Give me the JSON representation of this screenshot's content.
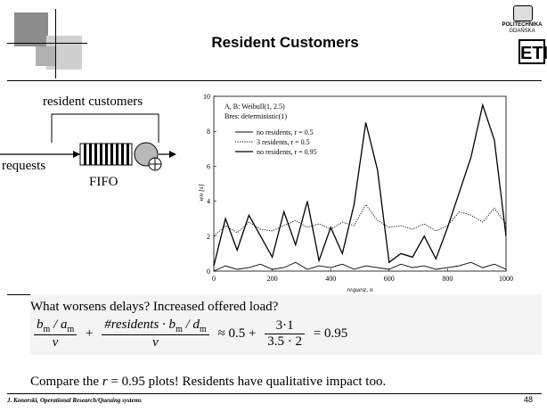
{
  "slide": {
    "title": "Resident Customers",
    "logo": {
      "line1": "POLITECHNIKA",
      "line2": "GDAŃSKA",
      "mark": "ETI"
    },
    "diagram": {
      "resident_label": "resident customers",
      "requests_label": "requests",
      "fifo_label": "FIFO"
    },
    "question": "What worsens delays? Increased offered load?",
    "formula": {
      "t1_num": "b",
      "t1_num_sub": "m",
      "t1_num_mid": " / a",
      "t1_num_sub2": "m",
      "t1_den": "v",
      "plus": "+",
      "t2_num": "#residents · b",
      "t2_num_sub": "m",
      "t2_num_mid": " / d",
      "t2_num_sub2": "m",
      "t2_den": "v",
      "approx": "≈ 0.5 +",
      "t3_num": "3·1",
      "t3_den": "3.5 · 2",
      "result": "= 0.95"
    },
    "compare_pre": "Compare the ",
    "compare_var": "r",
    "compare_post": " = 0.95 plots! Residents have qualitative impact too.",
    "footer": "J. Konorski, Operational Research/Queuing systems",
    "page_number": "48"
  },
  "chart_data": {
    "type": "line",
    "annotation_1": "A, B: Weibull(1, 2.5)",
    "annotation_2": "Bres: deterministic(1)",
    "xlabel": "request, n",
    "ylabel": "wn [s]",
    "xlim": [
      0,
      1000
    ],
    "ylim": [
      0,
      10
    ],
    "xticks": [
      "0",
      "200",
      "400",
      "600",
      "800",
      "1000"
    ],
    "yticks": [
      "0",
      "2",
      "4",
      "6",
      "8",
      "10"
    ],
    "legend_position": "top-left",
    "series": [
      {
        "name": "no residents, r = 0.5",
        "style": "solid",
        "x": [
          0,
          40,
          80,
          120,
          160,
          200,
          240,
          280,
          320,
          360,
          400,
          440,
          480,
          520,
          560,
          600,
          640,
          680,
          720,
          760,
          800,
          840,
          880,
          920,
          960,
          1000
        ],
        "values": [
          0,
          0.3,
          0.1,
          0.2,
          0.4,
          0.1,
          0.2,
          0.5,
          0.1,
          0.3,
          0.2,
          0.4,
          0.1,
          0.3,
          0.2,
          0.1,
          0.4,
          0.2,
          0.3,
          0.1,
          0.2,
          0.3,
          0.5,
          0.2,
          0.4,
          0.1
        ]
      },
      {
        "name": "3 residents, r = 0.5",
        "style": "dotted",
        "x": [
          0,
          40,
          80,
          120,
          160,
          200,
          240,
          280,
          320,
          360,
          400,
          440,
          480,
          520,
          560,
          600,
          640,
          680,
          720,
          760,
          800,
          840,
          880,
          920,
          960,
          1000
        ],
        "values": [
          2.0,
          2.6,
          2.2,
          2.8,
          2.4,
          2.3,
          2.6,
          2.9,
          2.5,
          2.7,
          2.4,
          2.8,
          2.6,
          3.8,
          2.9,
          2.5,
          2.6,
          2.4,
          2.7,
          2.3,
          2.6,
          3.4,
          3.2,
          2.8,
          3.6,
          2.7
        ]
      },
      {
        "name": "no residents, r = 0.95",
        "style": "solid-bold",
        "x": [
          0,
          40,
          80,
          120,
          160,
          200,
          240,
          280,
          320,
          360,
          400,
          440,
          480,
          520,
          560,
          600,
          640,
          680,
          720,
          760,
          800,
          840,
          880,
          920,
          960,
          1000
        ],
        "values": [
          0.3,
          3.0,
          1.2,
          3.2,
          2.0,
          0.8,
          3.4,
          1.5,
          4.0,
          0.6,
          2.5,
          1.0,
          3.8,
          8.5,
          5.8,
          0.5,
          1.0,
          0.8,
          2.0,
          0.7,
          2.5,
          4.5,
          6.5,
          9.5,
          7.5,
          2.0
        ]
      }
    ]
  }
}
